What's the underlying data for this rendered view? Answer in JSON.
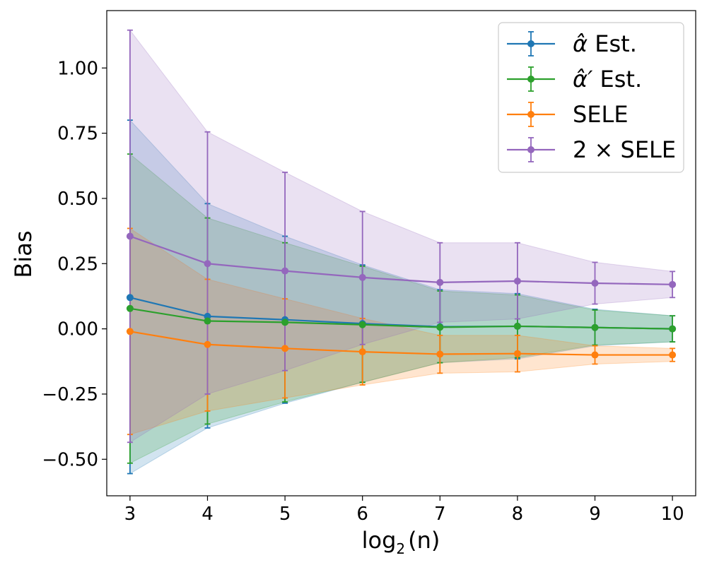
{
  "chart_data": {
    "type": "line",
    "title": "",
    "xlabel": "log",
    "xlabel_sub": "2",
    "xlabel_arg": "(n)",
    "ylabel": "Bias",
    "x": [
      3,
      4,
      5,
      6,
      7,
      8,
      9,
      10
    ],
    "xticks": [
      "3",
      "4",
      "5",
      "6",
      "7",
      "8",
      "9",
      "10"
    ],
    "xlim": [
      2.7,
      10.3
    ],
    "yticks": [
      {
        "value": -0.5,
        "label": "−0.50"
      },
      {
        "value": -0.25,
        "label": "−0.25"
      },
      {
        "value": 0.0,
        "label": "0.00"
      },
      {
        "value": 0.25,
        "label": "0.25"
      },
      {
        "value": 0.5,
        "label": "0.50"
      },
      {
        "value": 0.75,
        "label": "0.75"
      },
      {
        "value": 1.0,
        "label": "1.00"
      }
    ],
    "ylim": [
      -0.64,
      1.22
    ],
    "grid": false,
    "legend_position": "top-right",
    "series": [
      {
        "name": "alpha-hat",
        "legend_symbol": "α̂",
        "legend_suffix": " Est.",
        "color": "#1f77b4",
        "values": [
          0.12,
          0.048,
          0.035,
          0.02,
          0.008,
          0.01,
          0.005,
          0.0
        ],
        "upper": [
          0.8,
          0.48,
          0.355,
          0.245,
          0.15,
          0.135,
          0.075,
          0.05
        ],
        "lower": [
          -0.555,
          -0.38,
          -0.285,
          -0.205,
          -0.13,
          -0.115,
          -0.065,
          -0.05
        ]
      },
      {
        "name": "alpha-hat-prime",
        "legend_symbol": "α̂′",
        "legend_suffix": " Est.",
        "color": "#2ca02c",
        "values": [
          0.078,
          0.03,
          0.025,
          0.016,
          0.006,
          0.01,
          0.005,
          0.0
        ],
        "upper": [
          0.67,
          0.425,
          0.33,
          0.24,
          0.145,
          0.13,
          0.072,
          0.05
        ],
        "lower": [
          -0.515,
          -0.365,
          -0.28,
          -0.205,
          -0.13,
          -0.11,
          -0.062,
          -0.05
        ]
      },
      {
        "name": "SELE",
        "legend_symbol": "",
        "legend_suffix": "SELE",
        "color": "#ff7f0e",
        "values": [
          -0.01,
          -0.06,
          -0.075,
          -0.088,
          -0.097,
          -0.095,
          -0.1,
          -0.1
        ],
        "upper": [
          0.385,
          0.19,
          0.115,
          0.04,
          -0.025,
          -0.025,
          -0.065,
          -0.075
        ],
        "lower": [
          -0.405,
          -0.315,
          -0.265,
          -0.215,
          -0.17,
          -0.165,
          -0.135,
          -0.125
        ]
      },
      {
        "name": "2xSELE",
        "legend_symbol": "",
        "legend_suffix": "2 × SELE",
        "color": "#9467bd",
        "values": [
          0.355,
          0.25,
          0.222,
          0.197,
          0.178,
          0.183,
          0.175,
          0.17
        ],
        "upper": [
          1.145,
          0.755,
          0.6,
          0.45,
          0.33,
          0.33,
          0.255,
          0.22
        ],
        "lower": [
          -0.435,
          -0.25,
          -0.16,
          -0.06,
          0.025,
          0.038,
          0.095,
          0.12
        ]
      }
    ]
  }
}
